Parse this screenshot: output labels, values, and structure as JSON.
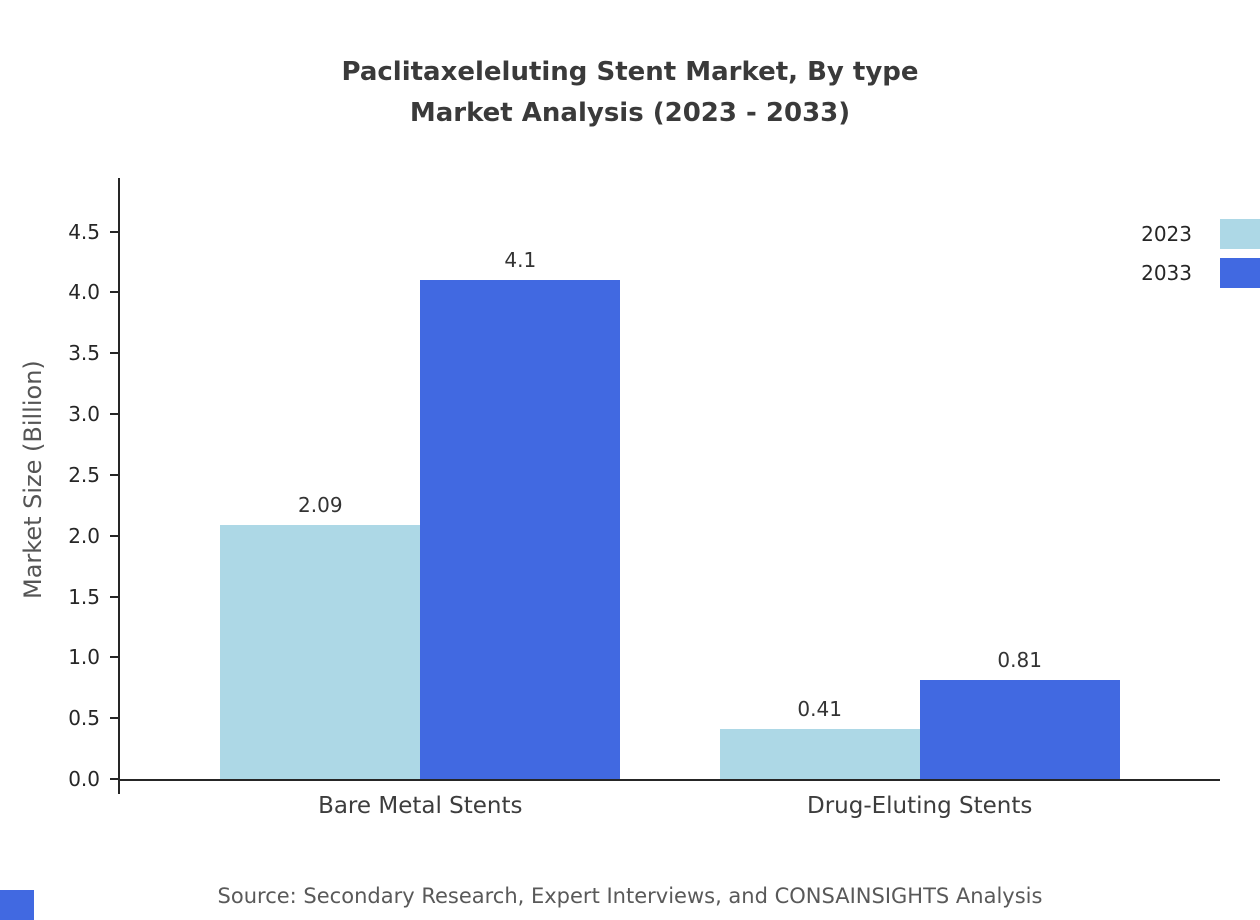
{
  "title": {
    "line1": "Paclitaxeleluting Stent Market, By type",
    "line2": "Market Analysis (2023 - 2033)"
  },
  "footer": "Source: Secondary Research, Expert Interviews, and CONSAINSIGHTS Analysis",
  "colors": {
    "series_2023": "#ADD8E6",
    "series_2033": "#4169E1",
    "axis": "#262626",
    "corner_mark": "#4169E1"
  },
  "chart_data": {
    "type": "bar",
    "title": "Paclitaxeleluting Stent Market, By type — Market Analysis (2023 - 2033)",
    "categories": [
      "Bare Metal Stents",
      "Drug-Eluting Stents"
    ],
    "series": [
      {
        "name": "2023",
        "color": "#ADD8E6",
        "values": [
          2.09,
          0.41
        ],
        "labels": [
          "2.09",
          "0.41"
        ]
      },
      {
        "name": "2033",
        "color": "#4169E1",
        "values": [
          4.1,
          0.81
        ],
        "labels": [
          "4.1",
          "0.81"
        ]
      }
    ],
    "xlabel": "",
    "ylabel": "Market Size (Billion)",
    "ylim": [
      0,
      4.94
    ],
    "yticks": [
      0,
      0.5,
      1,
      1.5,
      2,
      2.5,
      3,
      3.5,
      4,
      4.5
    ],
    "grid": false,
    "legend_position": "top-right"
  }
}
